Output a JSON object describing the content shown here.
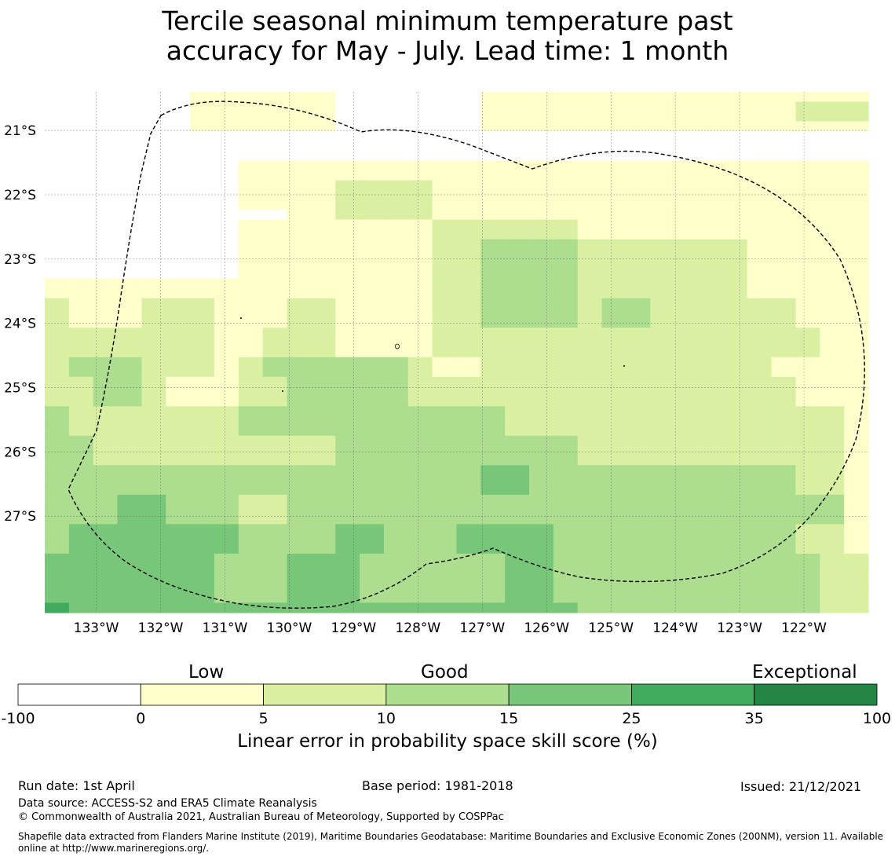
{
  "title": {
    "line1": "Tercile seasonal minimum temperature past",
    "line2": "accuracy for May - July. Lead time: 1 month"
  },
  "map": {
    "lat_labels": [
      "21°S",
      "22°S",
      "23°S",
      "24°S",
      "25°S",
      "26°S",
      "27°S"
    ],
    "lat_values": [
      -21,
      -22,
      -23,
      -24,
      -25,
      -26,
      -27
    ],
    "lon_labels": [
      "133°W",
      "132°W",
      "131°W",
      "130°W",
      "129°W",
      "128°W",
      "127°W",
      "126°W",
      "125°W",
      "124°W",
      "123°W",
      "122°W"
    ],
    "lon_values": [
      -133,
      -132,
      -131,
      -130,
      -129,
      -128,
      -127,
      -126,
      -125,
      -124,
      -123,
      -122
    ],
    "lon_range": [
      -133.8,
      -121.0
    ],
    "lat_range": [
      -20.4,
      -28.5
    ],
    "grid": true,
    "boundary": "EEZ dashed outline",
    "class_grid": [
      "0000001111110000001111111111111111",
      "0000001111110000001111111111111222",
      "0000001111110000001111111111111222",
      "0000001111110000001111111111111111",
      "0000000000000000000000000000000000",
      "0000000000000000000000000000000000",
      "0000000000000000000000000000000000",
      "0000000011111111111111111111111111",
      "0000000011111111111111111111111111",
      "0000000011112222111111111111111111",
      "0000000011112222111111111111111111",
      "0000000011112222111111111111111111",
      "0000000000112222111111111111111111",
      "0000000011111111222222111111111111",
      "0000000011111111222222111111111111",
      "0000000011111111223333222222211111",
      "0000000011111111223333222222211111",
      "0000000011111111223333222222211111",
      "0000000011111111223333222222211111",
      "1111111111111111223333222222211111",
      "1111111111111111223333222222211111",
      "2111222111221111223333233222222111",
      "2111222111221111223333233222222111",
      "2111222111221111223333233222222111",
      "2222222112221111222222222222222211",
      "2222222112221111222222222222222211",
      "2222222112221111222222222222222211",
      "2333222123333332112222222222221111",
      "2333222123333332112222222222221111",
      "2233211122333332222222222222222111",
      "2233211122333332222222222222222111",
      "2233211122333332222222222222222111",
      "3222222233333333333222222222222221",
      "3222222233333333333222222222222221",
      "3222222233333333333222222222222221",
      "3322222222223333333333222222222221",
      "3322222222223333333333222222222221",
      "3322222222223333333333222222222221",
      "3333333333333333334433333333333221",
      "3333333333333333334433333333333221",
      "3333333333333333334433333333333221",
      "3334433322333333333333333333333331",
      "3334433322333333333333333333333331",
      "3334433322333333333333333333333331",
      "3444444433334433344443333333333221",
      "3444444433334433344443333333333221",
      "3444444433334433344443333333333221",
      "4444444333444333333443333333333322",
      "4444444333444333333443333333333322",
      "4444444333444333333443333333333322",
      "4444444333444333333443333333333322",
      "4444444333444333333443333333333322",
      "5444444444444444444444333333333322"
    ]
  },
  "colorbar": {
    "category_labels": [
      "Low",
      "Good",
      "Exceptional"
    ],
    "bounds": [
      "-100",
      "0",
      "5",
      "10",
      "15",
      "25",
      "35",
      "100"
    ],
    "colors": [
      "#ffffff",
      "#ffffcc",
      "#d9f0a3",
      "#addd8e",
      "#78c679",
      "#41ab5d",
      "#238443"
    ],
    "title": "Linear error in probability space skill score (%)"
  },
  "footer": {
    "run_date": "Run date: 1st April",
    "base_period": "Base period: 1981-2018",
    "issued": "Issued: 21/12/2021",
    "data_source": "Data source: ACCESS-S2 and ERA5 Climate Reanalysis",
    "copyright": "© Commonwealth of Australia 2021, Australian Bureau of Meteorology, Supported by COSPPac",
    "shapefile": "Shapefile data extracted from Flanders Marine Institute (2019), Maritime Boundaries Geodatabase: Maritime Boundaries and Exclusive Economic Zones (200NM), version 11. Available online at http://www.marineregions.org/."
  }
}
